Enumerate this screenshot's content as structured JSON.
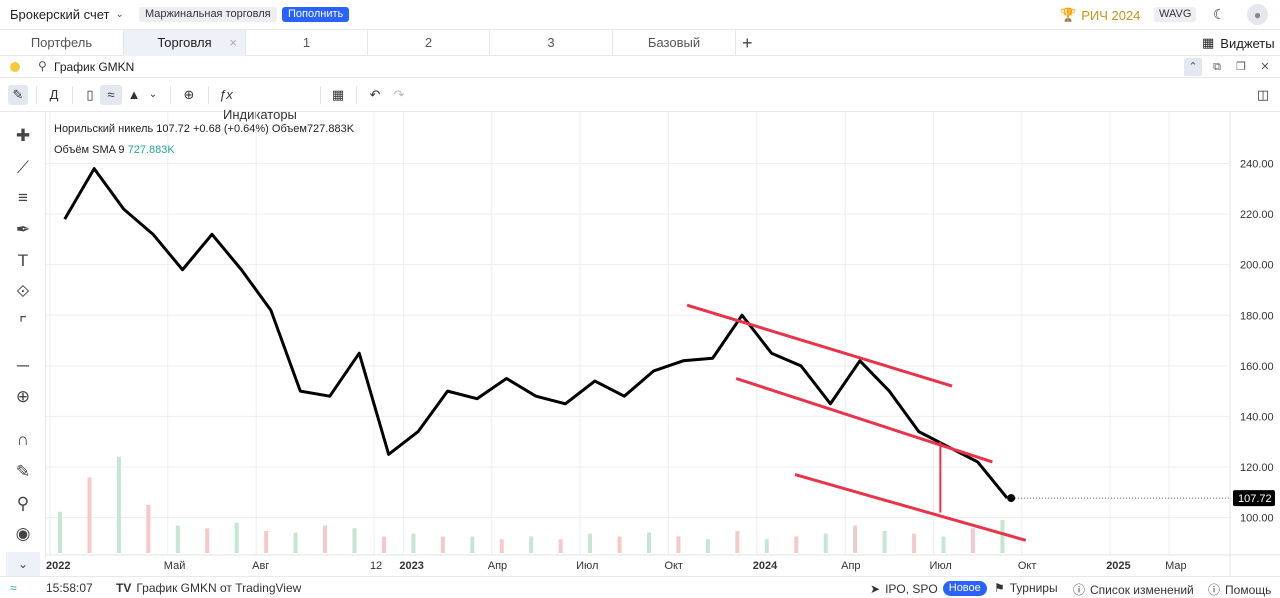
{
  "topbar": {
    "account_label": "Брокерский счет",
    "margin_pill": "Маржинальная торговля",
    "deposit_button": "Пополнить",
    "contest_label": "РИЧ 2024",
    "wavg_label": "WAVG"
  },
  "tabs": [
    {
      "label": "Портфель"
    },
    {
      "label": "Торговля"
    },
    {
      "label": "1"
    },
    {
      "label": "2"
    },
    {
      "label": "3"
    },
    {
      "label": "Базовый"
    }
  ],
  "widgets_label": "Виджеты",
  "search": {
    "title": "График GMKN"
  },
  "toolbar": {
    "interval_label": "Д",
    "indicators_label": "Индикаторы"
  },
  "legend": {
    "symbol_name": "Норильский никель",
    "last": "107.72",
    "change": "+0.68 (+0.64%)",
    "volume_label": "Объем",
    "volume_value": "727.883K",
    "sma_label": "Объём SMA 9",
    "sma_value": "727.883K"
  },
  "chart_data": {
    "type": "line",
    "title": "Норильский никель",
    "x_tick_labels": [
      "2022",
      "Май",
      "Авг",
      "12",
      "2023",
      "Апр",
      "Июл",
      "Окт",
      "2024",
      "Апр",
      "Июл",
      "Окт",
      "2025",
      "Мар"
    ],
    "y_tick_labels": [
      "240.00",
      "220.00",
      "200.00",
      "180.00",
      "160.00",
      "140.00",
      "120.00",
      "100.00"
    ],
    "ylim": [
      86,
      258
    ],
    "last_price_label": "107.72",
    "x": [
      "2022-01",
      "2022-02",
      "2022-03",
      "2022-04",
      "2022-05",
      "2022-06",
      "2022-07",
      "2022-08",
      "2022-09",
      "2022-10",
      "2022-11",
      "2022-12",
      "2023-01",
      "2023-02",
      "2023-03",
      "2023-04",
      "2023-05",
      "2023-06",
      "2023-07",
      "2023-08",
      "2023-09",
      "2023-10",
      "2023-11",
      "2023-12",
      "2024-01",
      "2024-02",
      "2024-03",
      "2024-04",
      "2024-05",
      "2024-06",
      "2024-07",
      "2024-08",
      "2024-09"
    ],
    "series": [
      {
        "values": [
          218,
          238,
          222,
          212,
          198,
          212,
          198,
          182,
          150,
          148,
          165,
          125,
          134,
          150,
          147,
          155,
          148,
          145,
          154,
          148,
          158,
          162,
          163,
          180,
          165,
          160,
          145,
          162,
          150,
          134,
          128,
          122,
          107.72
        ]
      }
    ],
    "trendlines": [
      {
        "points": [
          [
            "2023-10-20",
            184
          ],
          [
            "2024-07-20",
            152
          ]
        ]
      },
      {
        "points": [
          [
            "2023-12-10",
            155
          ],
          [
            "2024-09-01",
            122
          ]
        ]
      },
      {
        "points": [
          [
            "2024-02-10",
            117
          ],
          [
            "2024-10-05",
            91
          ]
        ]
      }
    ],
    "volume": [
      30,
      55,
      70,
      35,
      20,
      18,
      22,
      16,
      15,
      20,
      18,
      12,
      14,
      12,
      12,
      10,
      12,
      10,
      14,
      12,
      15,
      12,
      10,
      16,
      10,
      12,
      14,
      20,
      16,
      14,
      12,
      18,
      24
    ]
  },
  "status": {
    "time": "15:58:07",
    "chart_link": "График GMKN от TradingView",
    "ipo_label": "IPO, SPO",
    "new_badge": "Новое",
    "tournaments": "Турниры",
    "changelog": "Список изменений",
    "help": "Помощь"
  }
}
